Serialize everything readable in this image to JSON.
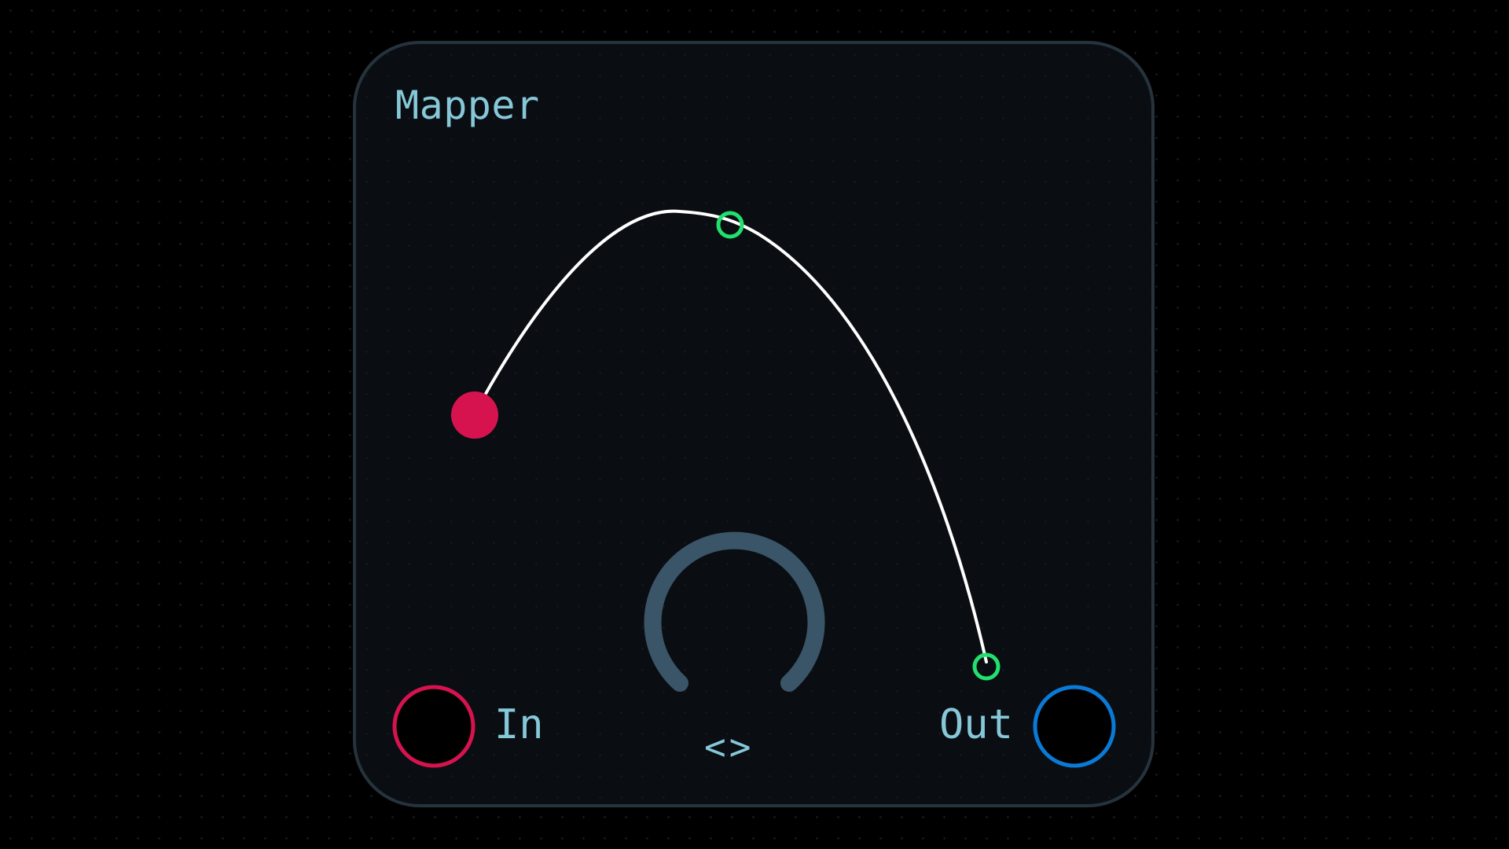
{
  "module": {
    "title": "Mapper"
  },
  "ports": {
    "input_label": "In",
    "output_label": "Out"
  },
  "knob": {
    "arrows_label": "<>"
  },
  "colors": {
    "background": "#000000",
    "panel": "#0a0e13",
    "panel_border": "#26333d",
    "label_text": "#86c8d8",
    "input_accent": "#d6134f",
    "output_accent": "#0a7ad6",
    "cable": "#ffffff",
    "handle": "#22e06e",
    "knob_track": "#3a5568"
  },
  "icons": {
    "input_jack": "input-jack-icon",
    "output_jack": "output-jack-icon",
    "cable_plug": "cable-plug-icon",
    "control_handle": "control-point-icon",
    "knob": "knob-icon"
  }
}
